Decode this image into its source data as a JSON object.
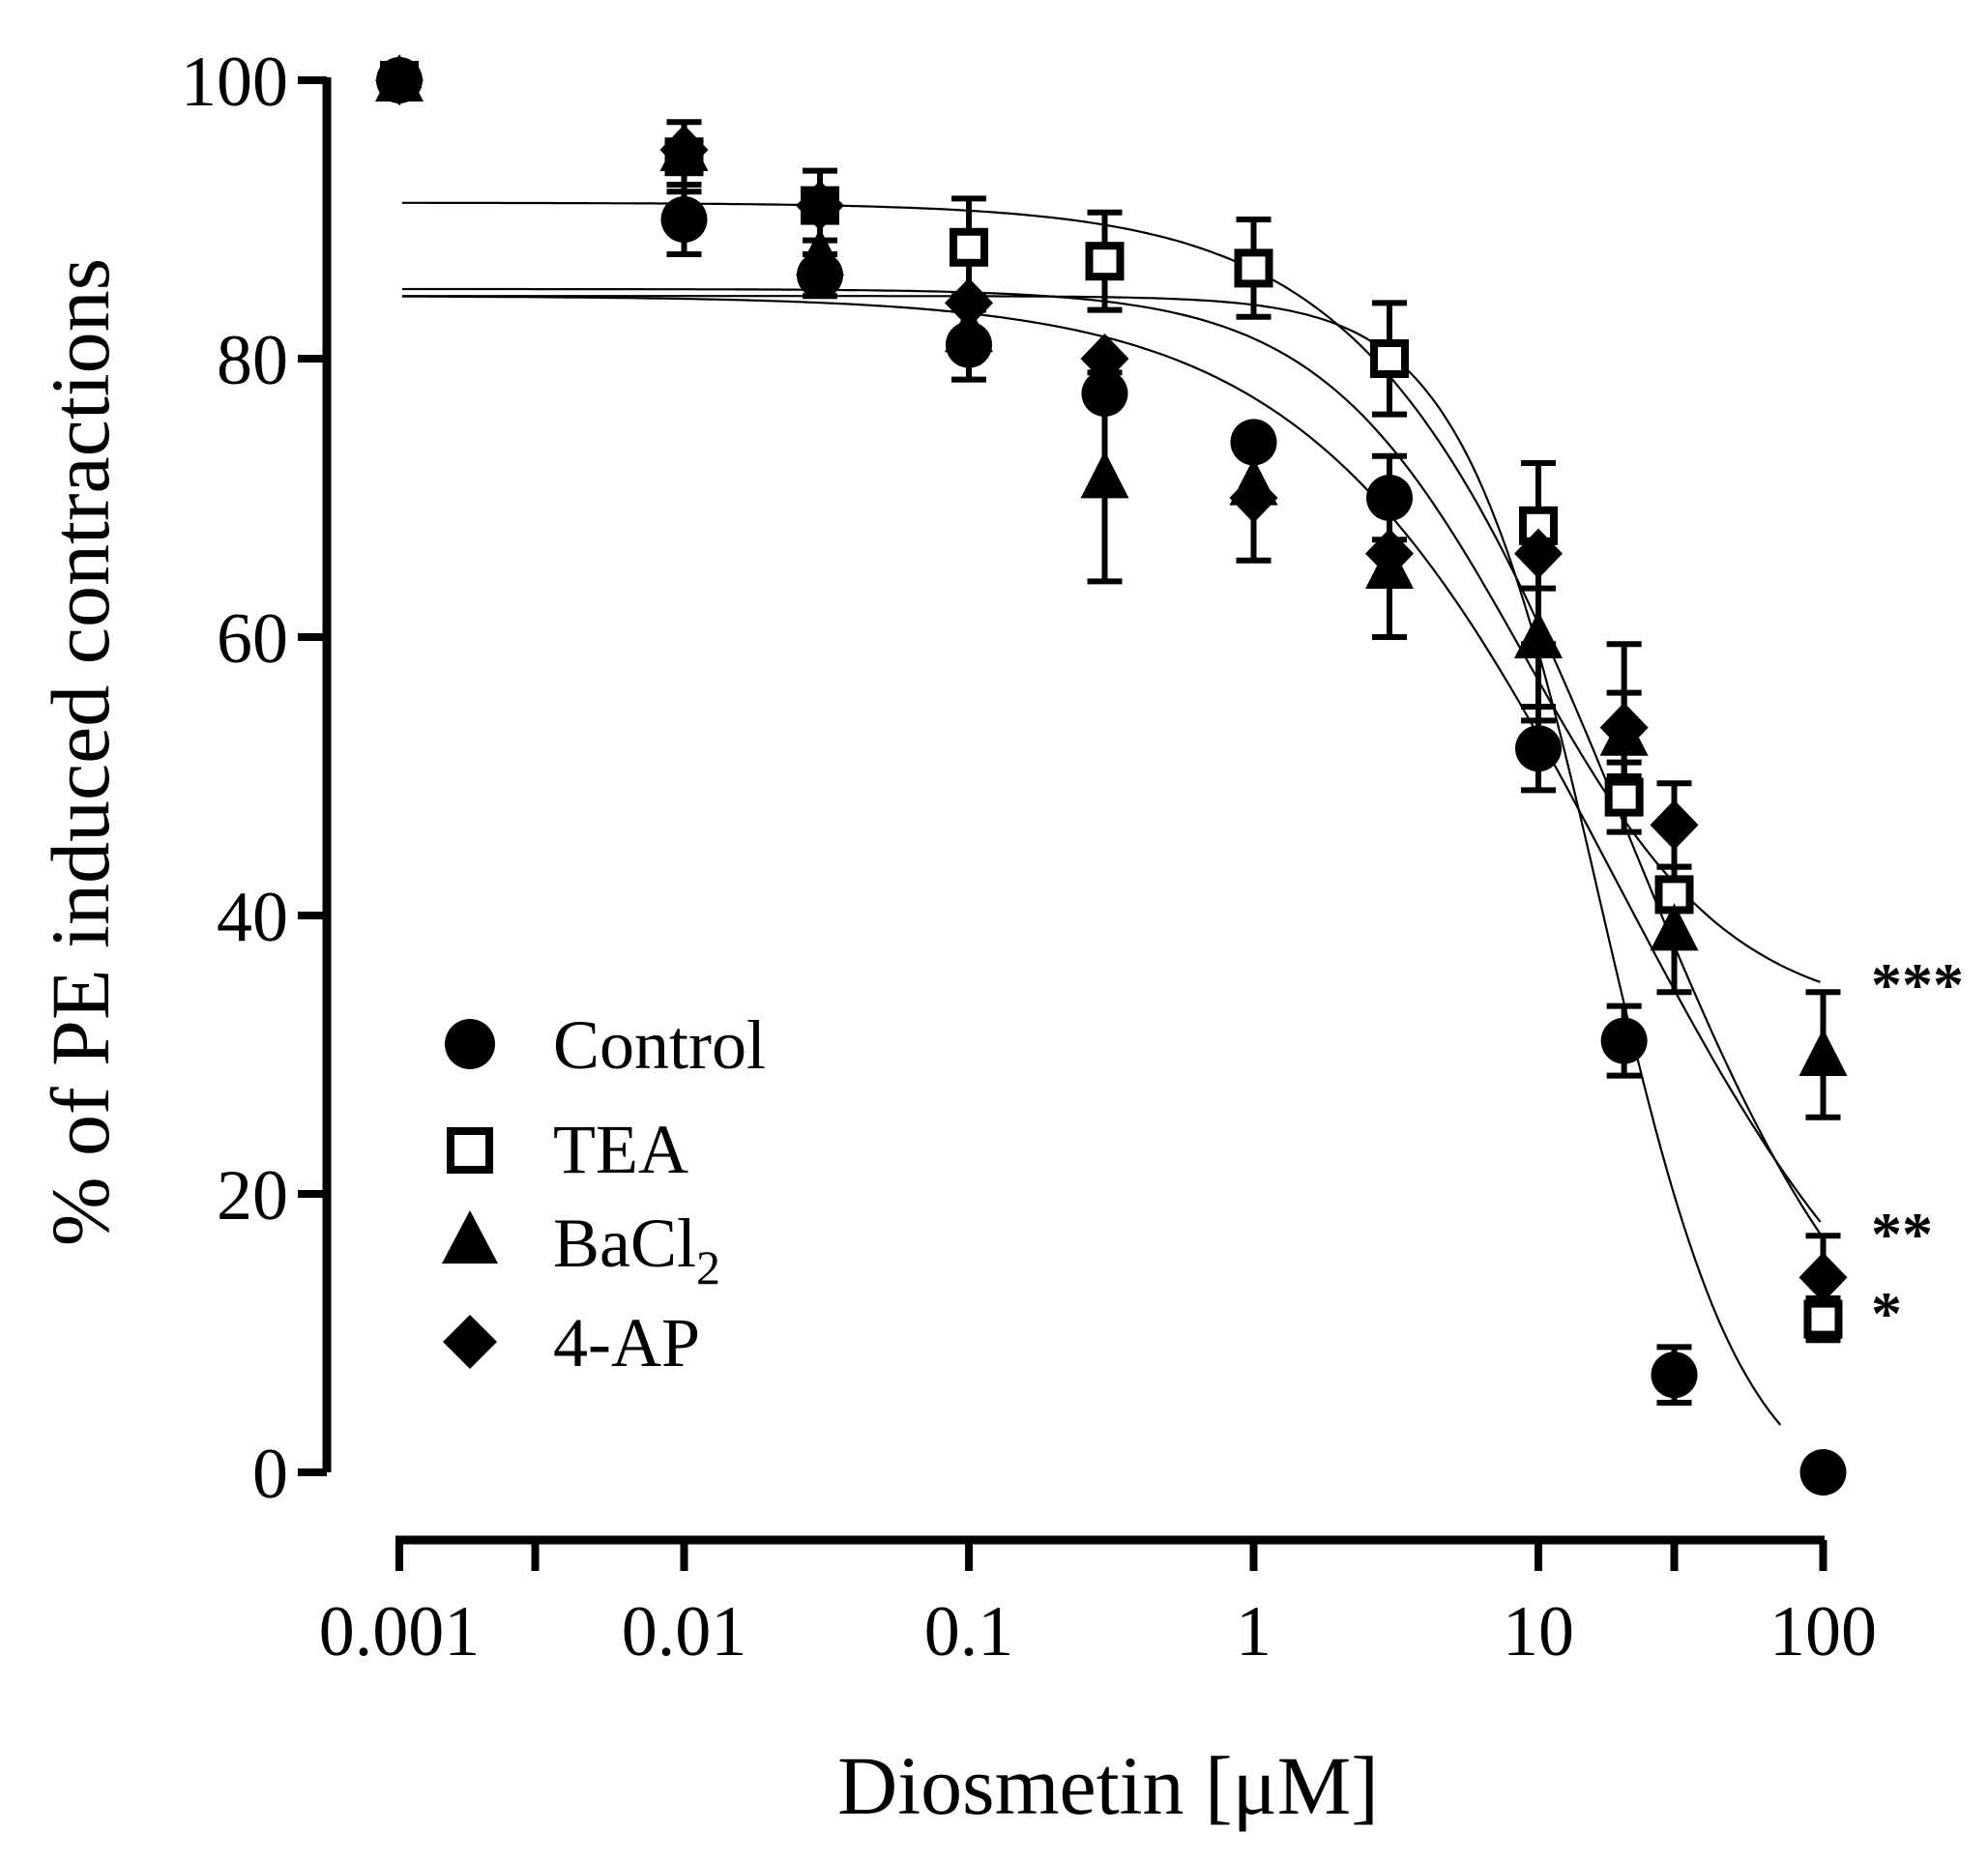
{
  "chart_data": {
    "type": "scatter",
    "title": "",
    "xlabel": "Diosmetin [μM]",
    "ylabel": "% of PE induced contractions",
    "xscale": "log",
    "xlim": [
      0.001,
      100
    ],
    "ylim": [
      0,
      100
    ],
    "x_ticks": [
      0.001,
      0.003,
      0.01,
      0.1,
      1,
      10,
      30,
      100
    ],
    "x_tick_labels": [
      "0.001",
      "",
      "0.01",
      "0.1",
      "1",
      "10",
      "",
      "100"
    ],
    "y_ticks": [
      0,
      20,
      40,
      60,
      80,
      100
    ],
    "y_tick_labels": [
      "0",
      "20",
      "40",
      "60",
      "80",
      "100"
    ],
    "legend_position": "lower-left",
    "series": [
      {
        "name": "Control",
        "marker": "filled-circle",
        "x": [
          0.001,
          0.01,
          0.03,
          0.1,
          0.3,
          1,
          3,
          10,
          20,
          30,
          100
        ],
        "y": [
          100,
          90,
          86,
          81,
          77.5,
          74,
          70,
          52,
          31,
          7,
          0
        ],
        "err": [
          0,
          2.5,
          1.5,
          2.5,
          0,
          0,
          3,
          3,
          2.5,
          2,
          0
        ],
        "fit": {
          "top": 84.5,
          "bottom": -3,
          "log_ic50": 1.22,
          "hill": 1.75
        }
      },
      {
        "name": "TEA",
        "marker": "open-square",
        "x": [
          0.001,
          0.01,
          0.03,
          0.1,
          0.3,
          1,
          3,
          10,
          20,
          30,
          100
        ],
        "y": [
          100,
          94.5,
          91,
          88,
          87,
          86.5,
          80,
          68,
          48.5,
          41.5,
          11
        ],
        "err": [
          0,
          2.5,
          2.5,
          3.5,
          3.5,
          3.5,
          4,
          4.5,
          2.5,
          0,
          1.5
        ],
        "fit": {
          "top": 91.2,
          "bottom": 0,
          "log_ic50": 1.32,
          "hill": 0.95
        }
      },
      {
        "name": "BaCl2",
        "legend_label_main": "BaCl",
        "legend_label_sub": "2",
        "marker": "filled-triangle",
        "x": [
          0.001,
          0.01,
          0.03,
          0.1,
          0.3,
          1,
          3,
          10,
          20,
          30,
          100
        ],
        "y": [
          100,
          95,
          87.5,
          82,
          71.5,
          71,
          65,
          60,
          53,
          39,
          30
        ],
        "err": [
          0,
          0,
          0,
          0,
          7.5,
          0,
          5,
          6,
          3,
          4.5,
          4.5
        ],
        "fit": {
          "top": 85,
          "bottom": 32.4,
          "log_ic50": 0.95,
          "hill": 1.2
        }
      },
      {
        "name": "4-AP",
        "marker": "filled-diamond",
        "x": [
          0.001,
          0.01,
          0.03,
          0.1,
          0.3,
          1,
          3,
          10,
          20,
          30,
          100
        ],
        "y": [
          100,
          95,
          91,
          84,
          80,
          70,
          66,
          66,
          53.5,
          46.5,
          14
        ],
        "err": [
          0,
          0,
          0,
          0,
          0,
          4.5,
          0,
          6.5,
          6,
          3,
          3
        ],
        "fit": {
          "top": 84.5,
          "bottom": 0,
          "log_ic50": 1.28,
          "hill": 0.8
        }
      }
    ],
    "annotations": [
      {
        "text": "***",
        "x": 100,
        "y": 35.5
      },
      {
        "text": "**",
        "x": 100,
        "y": 17.5
      },
      {
        "text": "*",
        "x": 100,
        "y": 11.3
      }
    ]
  }
}
